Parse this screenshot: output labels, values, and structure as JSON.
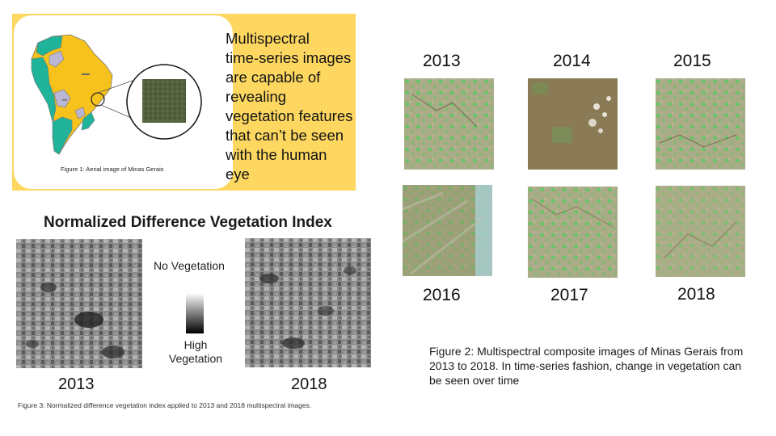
{
  "panel1": {
    "text": "Multispectral\ntime-series images\nare capable of\nrevealing\nvegetation features\nthat can’t be seen\nwith the human\neye",
    "fig1_caption": "Figure 1: Aerial image of Minas Gerais",
    "map_colors": {
      "teal": "#1fb39a",
      "yellow": "#f7c21b",
      "lavender": "#b9b6d6",
      "card_bg": "#fdd760"
    }
  },
  "ndvi": {
    "title": "Normalized Difference Vegetation Index",
    "legend_top": "No Vegetation",
    "legend_bottom": "High Vegetation",
    "years": [
      "2013",
      "2018"
    ],
    "caption": "Figure 3: Normalized difference vegetation index applied to 2013 and 2018 multispectral images."
  },
  "timeseries": {
    "years": [
      "2013",
      "2014",
      "2015",
      "2016",
      "2017",
      "2018"
    ],
    "caption": "Figure 2: Multispectral composite images of Minas Gerais from 2013 to 2018. In time-series fashion, change in vegetation can be seen over time"
  }
}
